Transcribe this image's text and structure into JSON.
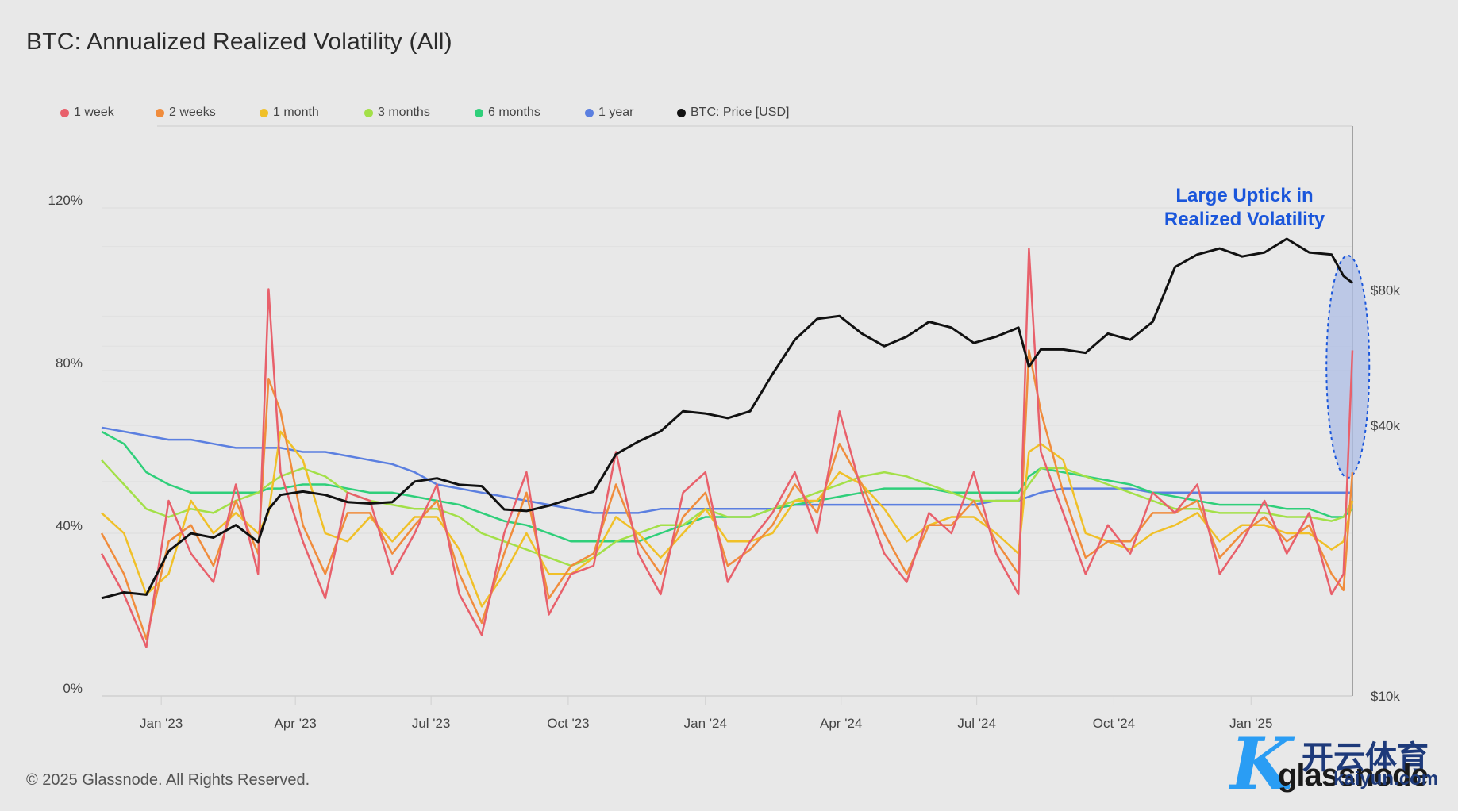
{
  "title": "BTC: Annualized Realized Volatility (All)",
  "footer": "© 2025 Glassnode. All Rights Reserved.",
  "logo": {
    "brand": "glassnode",
    "watermark_cn": "开云体育",
    "watermark_url": "kaiyun.com"
  },
  "colors": {
    "background": "#e8e8e8",
    "grid": "#dcdcdc",
    "annotation": "#1a56db",
    "ellipse_fill": "#aebde6"
  },
  "chart_data": {
    "type": "line",
    "title": "BTC: Annualized Realized Volatility (All)",
    "xlabel": "",
    "ylabel": "",
    "y_left": {
      "ticks": [
        "0%",
        "40%",
        "80%",
        "120%"
      ],
      "tick_values": [
        0,
        40,
        80,
        120
      ],
      "range": [
        0,
        120
      ],
      "unit": "%"
    },
    "y_right": {
      "scale": "log",
      "ticks": [
        "$10k",
        "$40k",
        "$80k"
      ],
      "tick_values": [
        10000,
        40000,
        80000
      ],
      "range": [
        10000,
        120000
      ],
      "unit": "USD"
    },
    "x_ticks": [
      "Jan '23",
      "Apr '23",
      "Jul '23",
      "Oct '23",
      "Jan '24",
      "Apr '24",
      "Jul '24",
      "Oct '24",
      "Jan '25"
    ],
    "x_tick_dates": [
      "2023-01-01",
      "2023-04-01",
      "2023-07-01",
      "2023-10-01",
      "2024-01-01",
      "2024-04-01",
      "2024-07-01",
      "2024-10-01",
      "2025-01-01"
    ],
    "x_range": [
      "2022-11-22",
      "2025-03-10"
    ],
    "grid": true,
    "legend_position": "top-left",
    "annotation": {
      "lines": [
        "Large Uptick in",
        "Realized Volatility"
      ],
      "target_date": "2025-03-08"
    },
    "x": [
      "2022-11-22",
      "2022-12-07",
      "2022-12-22",
      "2023-01-06",
      "2023-01-21",
      "2023-02-05",
      "2023-02-20",
      "2023-03-07",
      "2023-03-14",
      "2023-03-22",
      "2023-04-06",
      "2023-04-21",
      "2023-05-06",
      "2023-05-21",
      "2023-06-05",
      "2023-06-20",
      "2023-07-05",
      "2023-07-20",
      "2023-08-04",
      "2023-08-19",
      "2023-09-03",
      "2023-09-18",
      "2023-10-03",
      "2023-10-18",
      "2023-11-02",
      "2023-11-17",
      "2023-12-02",
      "2023-12-17",
      "2024-01-01",
      "2024-01-16",
      "2024-01-31",
      "2024-02-15",
      "2024-03-01",
      "2024-03-16",
      "2024-03-31",
      "2024-04-15",
      "2024-04-30",
      "2024-05-15",
      "2024-05-30",
      "2024-06-14",
      "2024-06-29",
      "2024-07-14",
      "2024-07-29",
      "2024-08-05",
      "2024-08-13",
      "2024-08-28",
      "2024-09-12",
      "2024-09-27",
      "2024-10-12",
      "2024-10-27",
      "2024-11-11",
      "2024-11-26",
      "2024-12-11",
      "2024-12-26",
      "2025-01-10",
      "2025-01-25",
      "2025-02-09",
      "2025-02-24",
      "2025-03-04",
      "2025-03-10"
    ],
    "series": [
      {
        "name": "1 week",
        "color": "#e8606b",
        "axis": "left",
        "values": [
          35,
          25,
          12,
          48,
          35,
          28,
          52,
          30,
          100,
          55,
          38,
          24,
          50,
          48,
          30,
          40,
          52,
          25,
          15,
          40,
          55,
          20,
          30,
          32,
          60,
          35,
          25,
          50,
          55,
          28,
          38,
          45,
          55,
          40,
          70,
          50,
          35,
          28,
          45,
          40,
          55,
          35,
          25,
          110,
          60,
          45,
          30,
          42,
          35,
          50,
          45,
          52,
          30,
          38,
          48,
          35,
          45,
          25,
          30,
          85
        ]
      },
      {
        "name": "2 weeks",
        "color": "#f08c3c",
        "axis": "left",
        "values": [
          40,
          30,
          14,
          38,
          42,
          32,
          48,
          35,
          78,
          70,
          42,
          30,
          45,
          45,
          35,
          42,
          48,
          30,
          18,
          35,
          50,
          24,
          32,
          35,
          52,
          38,
          30,
          44,
          50,
          32,
          36,
          42,
          52,
          45,
          62,
          52,
          40,
          30,
          42,
          42,
          48,
          38,
          30,
          85,
          70,
          50,
          34,
          38,
          38,
          45,
          45,
          48,
          34,
          40,
          44,
          38,
          42,
          30,
          26,
          55
        ]
      },
      {
        "name": "1 month",
        "color": "#f0c028",
        "axis": "left",
        "values": [
          45,
          40,
          25,
          30,
          48,
          40,
          45,
          40,
          45,
          65,
          58,
          40,
          38,
          44,
          38,
          44,
          44,
          36,
          22,
          30,
          40,
          30,
          30,
          34,
          44,
          40,
          34,
          40,
          46,
          38,
          38,
          40,
          48,
          48,
          55,
          52,
          46,
          38,
          42,
          44,
          44,
          40,
          35,
          60,
          62,
          58,
          40,
          38,
          36,
          40,
          42,
          45,
          38,
          42,
          42,
          40,
          40,
          36,
          38,
          48
        ]
      },
      {
        "name": "3 months",
        "color": "#a3e048",
        "axis": "left",
        "values": [
          58,
          52,
          46,
          44,
          46,
          45,
          48,
          50,
          52,
          54,
          56,
          54,
          50,
          48,
          47,
          46,
          46,
          44,
          40,
          38,
          36,
          34,
          32,
          34,
          38,
          40,
          42,
          42,
          46,
          44,
          44,
          46,
          48,
          50,
          52,
          54,
          55,
          54,
          52,
          50,
          48,
          48,
          48,
          52,
          56,
          56,
          54,
          52,
          50,
          48,
          46,
          46,
          45,
          45,
          45,
          44,
          44,
          43,
          44,
          48
        ]
      },
      {
        "name": "6 months",
        "color": "#2fcf7a",
        "axis": "left",
        "values": [
          65,
          62,
          55,
          52,
          50,
          50,
          50,
          50,
          51,
          51,
          52,
          52,
          51,
          50,
          50,
          49,
          48,
          47,
          45,
          43,
          42,
          40,
          38,
          38,
          38,
          38,
          40,
          42,
          44,
          44,
          44,
          46,
          47,
          48,
          49,
          50,
          51,
          51,
          51,
          50,
          50,
          50,
          50,
          54,
          56,
          55,
          54,
          53,
          52,
          50,
          49,
          48,
          47,
          47,
          47,
          46,
          46,
          44,
          44,
          46
        ]
      },
      {
        "name": "1 year",
        "color": "#5b7fe0",
        "axis": "left",
        "values": [
          66,
          65,
          64,
          63,
          63,
          62,
          61,
          61,
          61,
          61,
          60,
          60,
          59,
          58,
          57,
          55,
          52,
          51,
          50,
          49,
          48,
          47,
          46,
          45,
          45,
          45,
          46,
          46,
          46,
          46,
          46,
          46,
          47,
          47,
          47,
          47,
          47,
          47,
          47,
          47,
          47,
          48,
          48,
          49,
          50,
          51,
          51,
          51,
          51,
          50,
          50,
          50,
          50,
          50,
          50,
          50,
          50,
          50,
          50,
          50
        ]
      },
      {
        "name": "BTC: Price [USD]",
        "color": "#111111",
        "axis": "right",
        "values": [
          16500,
          17000,
          16800,
          21000,
          23000,
          22500,
          24000,
          22000,
          26000,
          28000,
          28500,
          28000,
          27000,
          26800,
          27000,
          30000,
          30500,
          29500,
          29300,
          26000,
          25800,
          26500,
          27500,
          28500,
          34500,
          36800,
          38800,
          43000,
          42500,
          41500,
          43000,
          52000,
          62000,
          69000,
          70000,
          64000,
          60000,
          63000,
          68000,
          66000,
          61000,
          63000,
          66000,
          54000,
          59000,
          59000,
          58000,
          64000,
          62000,
          68000,
          90000,
          96000,
          99000,
          95000,
          97000,
          104000,
          97000,
          96000,
          86000,
          83000
        ]
      }
    ]
  }
}
